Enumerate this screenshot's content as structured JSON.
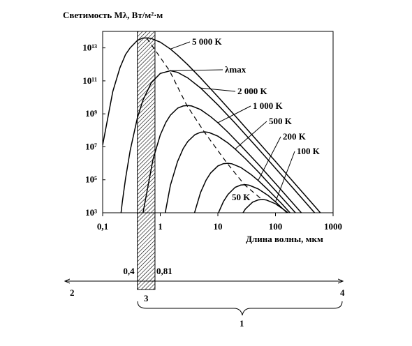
{
  "chart_data": {
    "type": "line",
    "title": "Светимость Mλ, Вт/м²·м",
    "x_label": "Длина волны, мкм",
    "log_x": true,
    "log_y": true,
    "xlim": [
      0.1,
      1000
    ],
    "ylim": [
      1000,
      100000000000000.0
    ],
    "xticks": [
      {
        "value": 0.1,
        "label": "0,1"
      },
      1,
      10,
      100,
      1000
    ],
    "yticks": [
      {
        "value": 1000,
        "label": "10³"
      },
      {
        "value": 100000,
        "label": "10⁵"
      },
      {
        "value": 10000000,
        "label": "10⁷"
      },
      {
        "value": 1000000000,
        "label": "10⁹"
      },
      {
        "value": 100000000000,
        "label": "10¹¹"
      },
      {
        "value": 10000000000000,
        "label": "10¹³"
      }
    ],
    "series": [
      {
        "name": "5 000 K",
        "color": "#000000",
        "x": [
          0.1,
          0.15,
          0.2,
          0.25,
          0.3,
          0.4,
          0.5,
          0.6,
          0.7,
          1,
          1.5,
          2,
          3,
          5,
          10,
          20,
          50,
          100,
          200,
          500,
          700
        ],
        "values": [
          12600000.0,
          22400000000.0,
          630000000000.0,
          3980000000000.0,
          10000000000000.0,
          28200000000000.0,
          39800000000000.0,
          40000000000000.0,
          37000000000000.0,
          22400000000000.0,
          8500000000000.0,
          3600000000000.0,
          950000000000.0,
          150000000000.0,
          11000000000.0,
          750000000.0,
          20000000.0,
          1300000.0,
          81000.0,
          2100.0,
          540
        ]
      },
      {
        "name": "2 000 K",
        "color": "#000000",
        "x": [
          0.2,
          0.22,
          0.25,
          0.3,
          0.4,
          0.5,
          0.7,
          1,
          1.5,
          2,
          3,
          5,
          10,
          20,
          50,
          100,
          200,
          500
        ],
        "values": [
          280,
          4600.0,
          120000.0,
          5900000.0,
          560000000.0,
          6700000000.0,
          77000000000.0,
          280000000000.0,
          410000000000.0,
          330000000000.0,
          150000000000.0,
          37000000000.0,
          3500000000.0,
          270000000.0,
          7700000.0,
          500000.0,
          32000.0,
          830
        ]
      },
      {
        "name": "1 000 K",
        "color": "#000000",
        "x": [
          0.5,
          0.75,
          1,
          1.25,
          1.5,
          2,
          2.5,
          3,
          3.5,
          5,
          7.5,
          10,
          15,
          25,
          50,
          100,
          250,
          500
        ],
        "values": [
          950,
          1800000.0,
          52000000.0,
          300000000.0,
          830000000.0,
          2200000000.0,
          3000000000.0,
          3200000000.0,
          3000000000.0,
          1800000000.0,
          670000000.0,
          290000000.0,
          76000000.0,
          12000000.0,
          890000.0,
          60000.0,
          1600.0,
          100
        ]
      },
      {
        "name": "500 K",
        "color": "#000000",
        "x": [
          1,
          1.5,
          2,
          2.5,
          3,
          4,
          5,
          6,
          7,
          10,
          15,
          20,
          30,
          50,
          100,
          200,
          500
        ],
        "values": [
          24,
          46000.0,
          1300000.0,
          7700000.0,
          21000000.0,
          55000000.0,
          76000000.0,
          80000000.0,
          74000000.0,
          44000000.0,
          17000000.0,
          7300000.0,
          1900000.0,
          310000.0,
          22000.0,
          1500.0,
          40
        ]
      },
      {
        "name": "200 K",
        "color": "#000000",
        "x": [
          3.75,
          5,
          6.25,
          7.5,
          10,
          12.5,
          15,
          17.5,
          25,
          37.5,
          50,
          75,
          125,
          250
        ],
        "values": [
          580,
          17000.0,
          96000.0,
          260000.0,
          690000.0,
          950000.0,
          1000000.0,
          930000.0,
          560000.0,
          210000.0,
          91000.0,
          24000.0,
          3900.0,
          280
        ]
      },
      {
        "name": "100 K",
        "color": "#000000",
        "x": [
          10,
          12.5,
          15,
          20,
          25,
          30,
          35,
          50,
          75,
          100,
          150,
          250
        ],
        "values": [
          830,
          4800.0,
          13000.0,
          35000.0,
          48000.0,
          50000.0,
          47000.0,
          28000.0,
          11000.0,
          4600.0,
          1200.0,
          190
        ]
      },
      {
        "name": "50 K",
        "color": "#000000",
        "x": [
          20,
          25,
          30,
          40,
          50,
          60,
          70,
          100,
          150,
          200
        ],
        "values": [
          100,
          610,
          1700.0,
          4400.0,
          6000.0,
          6400.0,
          5900.0,
          3500.0,
          1300.0,
          580
        ]
      },
      {
        "name": "λmax",
        "color": "#000000",
        "dashed": true,
        "x": [
          0.58,
          1.45,
          2.9,
          5.8,
          14.5,
          29,
          58
        ],
        "values": [
          40000000000000.0,
          410000000000.0,
          3200000000.0,
          80000000.0,
          1000000.0,
          50000.0,
          6400.0
        ]
      }
    ],
    "band": {
      "values": [
        0.4,
        0.81
      ],
      "value_labels": [
        "0,4",
        "0,81"
      ]
    },
    "annotations": [
      "1",
      "2",
      "3",
      "4"
    ]
  }
}
